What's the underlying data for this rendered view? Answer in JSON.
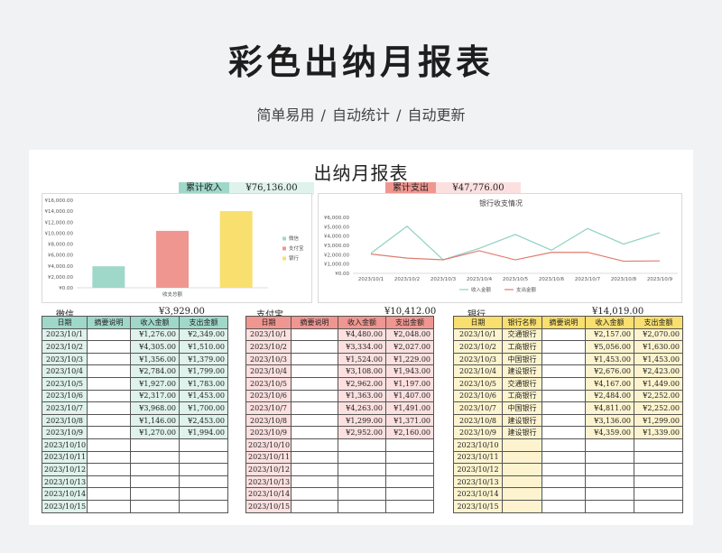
{
  "header": {
    "title": "彩色出纳月报表",
    "subtitle": "简单易用   /   自动统计   /   自动更新"
  },
  "sheet": {
    "title": "出纳月报表",
    "income_label": "累计收入",
    "income_value": "¥76,136.00",
    "expense_label": "累计支出",
    "expense_value": "¥47,776.00"
  },
  "colors": {
    "green": "#9fd8c9",
    "green_light": "#dff2ec",
    "red": "#f09690",
    "red_light": "#fce0e0",
    "yellow": "#f9df6e",
    "yellow_light": "#fdf4cf"
  },
  "chart_data": [
    {
      "type": "bar",
      "categories": [
        "微信",
        "支付宝",
        "银行"
      ],
      "values": [
        3929,
        10412,
        14019
      ],
      "xlabel": "收支总额",
      "ylim": [
        0,
        16000
      ],
      "yticks": [
        "¥0.00",
        "¥2,000.00",
        "¥4,000.00",
        "¥6,000.00",
        "¥8,000.00",
        "¥10,000.00",
        "¥12,000.00",
        "¥14,000.00",
        "¥16,000.00"
      ],
      "legend": [
        "微信",
        "支付宝",
        "银行"
      ],
      "legend_position": "right",
      "colors": [
        "#9fd8c9",
        "#f09690",
        "#f9df6e"
      ]
    },
    {
      "type": "line",
      "title": "银行收支情况",
      "x": [
        "2023/10/1",
        "2023/10/2",
        "2023/10/3",
        "2023/10/4",
        "2023/10/5",
        "2023/10/6",
        "2023/10/7",
        "2023/10/8",
        "2023/10/9"
      ],
      "series": [
        {
          "name": "收入金额",
          "values": [
            2157,
            5056,
            1453,
            2676,
            4167,
            2484,
            4811,
            3136,
            4359
          ],
          "color": "#8fd1c3"
        },
        {
          "name": "支出金额",
          "values": [
            2070,
            1630,
            1453,
            2423,
            1449,
            2252,
            2252,
            1299,
            1339
          ],
          "color": "#e07c6e"
        }
      ],
      "ylim": [
        0,
        6000
      ],
      "yticks": [
        "¥0.00",
        "¥1,000.00",
        "¥2,000.00",
        "¥3,000.00",
        "¥4,000.00",
        "¥5,000.00",
        "¥6,000.00"
      ],
      "legend_position": "bottom"
    }
  ],
  "wechat": {
    "caption": "微信",
    "total": "¥3,929.00",
    "headers": [
      "日期",
      "摘要说明",
      "收入金额",
      "支出金额"
    ],
    "rows": [
      [
        "2023/10/1",
        "",
        "¥1,276.00",
        "¥2,349.00"
      ],
      [
        "2023/10/2",
        "",
        "¥4,305.00",
        "¥1,510.00"
      ],
      [
        "2023/10/3",
        "",
        "¥1,356.00",
        "¥1,379.00"
      ],
      [
        "2023/10/4",
        "",
        "¥2,784.00",
        "¥1,799.00"
      ],
      [
        "2023/10/5",
        "",
        "¥1,927.00",
        "¥1,783.00"
      ],
      [
        "2023/10/6",
        "",
        "¥2,317.00",
        "¥1,453.00"
      ],
      [
        "2023/10/7",
        "",
        "¥3,968.00",
        "¥1,700.00"
      ],
      [
        "2023/10/8",
        "",
        "¥1,146.00",
        "¥2,453.00"
      ],
      [
        "2023/10/9",
        "",
        "¥1,270.00",
        "¥1,994.00"
      ],
      [
        "2023/10/10",
        "",
        "",
        ""
      ],
      [
        "2023/10/11",
        "",
        "",
        ""
      ],
      [
        "2023/10/12",
        "",
        "",
        ""
      ],
      [
        "2023/10/13",
        "",
        "",
        ""
      ],
      [
        "2023/10/14",
        "",
        "",
        ""
      ],
      [
        "2023/10/15",
        "",
        "",
        ""
      ]
    ]
  },
  "alipay": {
    "caption": "支付宝",
    "total": "¥10,412.00",
    "headers": [
      "日期",
      "摘要说明",
      "收入金额",
      "支出金额"
    ],
    "rows": [
      [
        "2023/10/1",
        "",
        "¥4,480.00",
        "¥2,048.00"
      ],
      [
        "2023/10/2",
        "",
        "¥3,334.00",
        "¥2,027.00"
      ],
      [
        "2023/10/3",
        "",
        "¥1,524.00",
        "¥1,229.00"
      ],
      [
        "2023/10/4",
        "",
        "¥3,108.00",
        "¥1,943.00"
      ],
      [
        "2023/10/5",
        "",
        "¥2,962.00",
        "¥1,197.00"
      ],
      [
        "2023/10/6",
        "",
        "¥1,363.00",
        "¥1,407.00"
      ],
      [
        "2023/10/7",
        "",
        "¥4,263.00",
        "¥1,491.00"
      ],
      [
        "2023/10/8",
        "",
        "¥1,299.00",
        "¥1,371.00"
      ],
      [
        "2023/10/9",
        "",
        "¥2,952.00",
        "¥2,160.00"
      ],
      [
        "2023/10/10",
        "",
        "",
        ""
      ],
      [
        "2023/10/11",
        "",
        "",
        ""
      ],
      [
        "2023/10/12",
        "",
        "",
        ""
      ],
      [
        "2023/10/13",
        "",
        "",
        ""
      ],
      [
        "2023/10/14",
        "",
        "",
        ""
      ],
      [
        "2023/10/15",
        "",
        "",
        ""
      ]
    ]
  },
  "bank": {
    "caption": "银行",
    "total": "¥14,019.00",
    "headers": [
      "日期",
      "银行名称",
      "摘要说明",
      "收入金额",
      "支出金额"
    ],
    "rows": [
      [
        "2023/10/1",
        "交通银行",
        "",
        "¥2,157.00",
        "¥2,070.00"
      ],
      [
        "2023/10/2",
        "工商银行",
        "",
        "¥5,056.00",
        "¥1,630.00"
      ],
      [
        "2023/10/3",
        "中国银行",
        "",
        "¥1,453.00",
        "¥1,453.00"
      ],
      [
        "2023/10/4",
        "建设银行",
        "",
        "¥2,676.00",
        "¥2,423.00"
      ],
      [
        "2023/10/5",
        "交通银行",
        "",
        "¥4,167.00",
        "¥1,449.00"
      ],
      [
        "2023/10/6",
        "工商银行",
        "",
        "¥2,484.00",
        "¥2,252.00"
      ],
      [
        "2023/10/7",
        "中国银行",
        "",
        "¥4,811.00",
        "¥2,252.00"
      ],
      [
        "2023/10/8",
        "建设银行",
        "",
        "¥3,136.00",
        "¥1,299.00"
      ],
      [
        "2023/10/9",
        "建设银行",
        "",
        "¥4,359.00",
        "¥1,339.00"
      ],
      [
        "2023/10/10",
        "",
        "",
        "",
        ""
      ],
      [
        "2023/10/11",
        "",
        "",
        "",
        ""
      ],
      [
        "2023/10/12",
        "",
        "",
        "",
        ""
      ],
      [
        "2023/10/13",
        "",
        "",
        "",
        ""
      ],
      [
        "2023/10/14",
        "",
        "",
        "",
        ""
      ],
      [
        "2023/10/15",
        "",
        "",
        "",
        ""
      ]
    ]
  }
}
